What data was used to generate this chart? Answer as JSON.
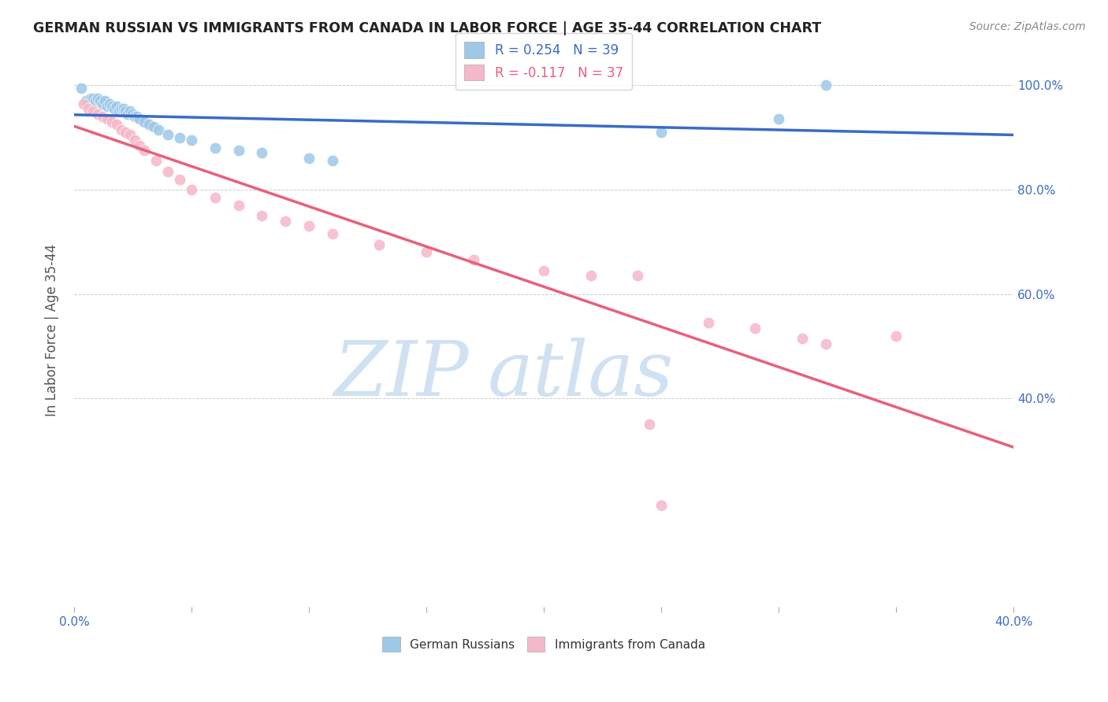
{
  "title": "GERMAN RUSSIAN VS IMMIGRANTS FROM CANADA IN LABOR FORCE | AGE 35-44 CORRELATION CHART",
  "source": "Source: ZipAtlas.com",
  "ylabel": "In Labor Force | Age 35-44",
  "legend_blue_label": "German Russians",
  "legend_pink_label": "Immigrants from Canada",
  "r_blue": 0.254,
  "n_blue": 39,
  "r_pink": -0.117,
  "n_pink": 37,
  "blue_color": "#9DC8E8",
  "blue_line_color": "#3B6BC4",
  "pink_color": "#F5B8C8",
  "pink_line_color": "#E8607A",
  "blue_scatter_x": [
    0.003,
    0.005,
    0.007,
    0.008,
    0.009,
    0.01,
    0.011,
    0.012,
    0.013,
    0.014,
    0.015,
    0.016,
    0.017,
    0.018,
    0.019,
    0.02,
    0.021,
    0.022,
    0.023,
    0.024,
    0.025,
    0.026,
    0.027,
    0.028,
    0.03,
    0.032,
    0.034,
    0.036,
    0.04,
    0.045,
    0.05,
    0.06,
    0.07,
    0.08,
    0.1,
    0.11,
    0.25,
    0.3,
    0.32
  ],
  "blue_scatter_y": [
    0.995,
    0.97,
    0.975,
    0.975,
    0.97,
    0.975,
    0.97,
    0.965,
    0.97,
    0.96,
    0.965,
    0.96,
    0.955,
    0.96,
    0.95,
    0.955,
    0.955,
    0.95,
    0.945,
    0.95,
    0.945,
    0.94,
    0.94,
    0.935,
    0.93,
    0.925,
    0.92,
    0.915,
    0.905,
    0.9,
    0.895,
    0.88,
    0.875,
    0.87,
    0.86,
    0.855,
    0.91,
    0.935,
    1.0
  ],
  "pink_scatter_x": [
    0.004,
    0.006,
    0.008,
    0.01,
    0.012,
    0.014,
    0.016,
    0.018,
    0.02,
    0.022,
    0.024,
    0.026,
    0.028,
    0.03,
    0.035,
    0.04,
    0.045,
    0.05,
    0.06,
    0.07,
    0.08,
    0.09,
    0.1,
    0.11,
    0.13,
    0.15,
    0.17,
    0.2,
    0.22,
    0.24,
    0.27,
    0.29,
    0.31,
    0.32,
    0.35,
    0.245,
    0.25
  ],
  "pink_scatter_y": [
    0.965,
    0.955,
    0.95,
    0.945,
    0.94,
    0.935,
    0.93,
    0.925,
    0.915,
    0.91,
    0.905,
    0.895,
    0.885,
    0.875,
    0.855,
    0.835,
    0.82,
    0.8,
    0.785,
    0.77,
    0.75,
    0.74,
    0.73,
    0.715,
    0.695,
    0.68,
    0.665,
    0.645,
    0.635,
    0.635,
    0.545,
    0.535,
    0.515,
    0.505,
    0.52,
    0.35,
    0.195
  ],
  "xlim": [
    0.0,
    0.4
  ],
  "ylim": [
    0.0,
    1.06
  ],
  "yticks": [
    1.0,
    0.8,
    0.6,
    0.4
  ],
  "ytick_labels": [
    "100.0%",
    "80.0%",
    "60.0%",
    "40.0%"
  ],
  "xtick_labels": [
    "0.0%",
    "",
    "",
    "",
    "",
    "",
    "",
    "",
    "40.0%"
  ],
  "grid_color": "#CCCCCC",
  "background_color": "#FFFFFF",
  "title_color": "#222222",
  "source_color": "#888888",
  "tick_color": "#3B6BC4",
  "ylabel_color": "#555555"
}
